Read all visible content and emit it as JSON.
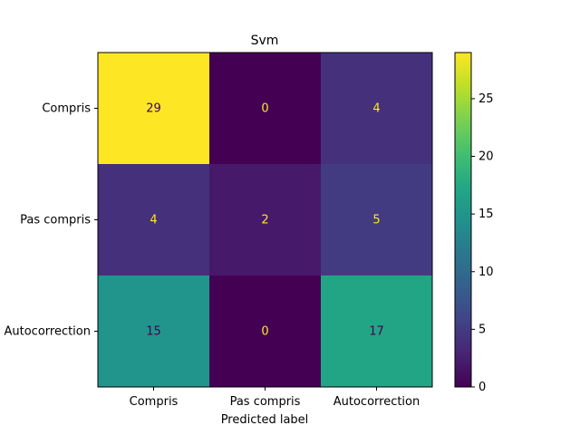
{
  "chart_data": {
    "type": "heatmap",
    "title": "Svm",
    "xlabel": "Predicted label",
    "ylabel": "",
    "x_categories": [
      "Compris",
      "Pas compris",
      "Autocorrection"
    ],
    "y_categories": [
      "Compris",
      "Pas compris",
      "Autocorrection"
    ],
    "matrix": [
      [
        29,
        0,
        4
      ],
      [
        4,
        2,
        5
      ],
      [
        15,
        0,
        17
      ]
    ],
    "colormap": "viridis",
    "vmin": 0,
    "vmax": 29,
    "colorbar_ticks": [
      0,
      5,
      10,
      15,
      20,
      25
    ],
    "colorbar_ticks_text": [
      "0",
      "5",
      "10",
      "15",
      "20",
      "25"
    ]
  }
}
